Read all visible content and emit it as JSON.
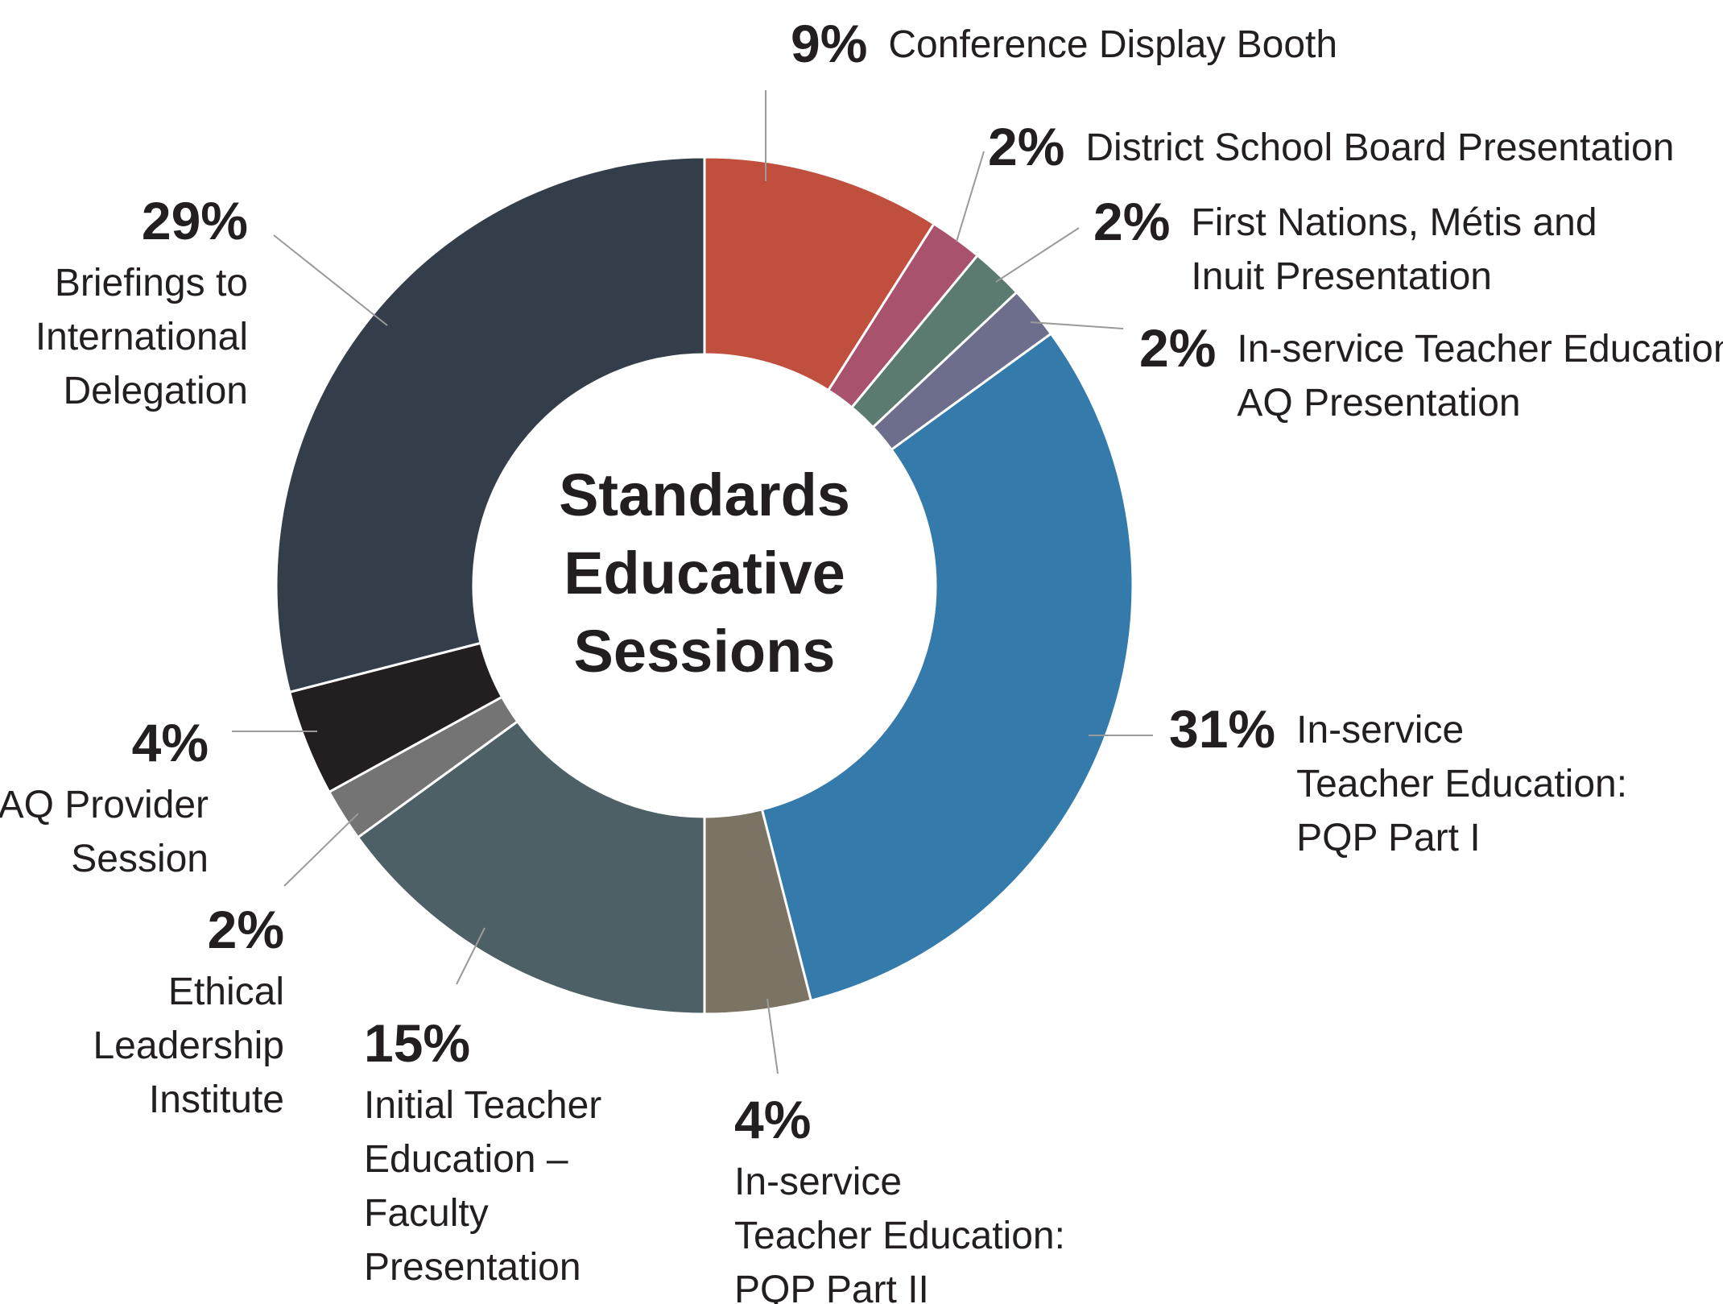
{
  "chart_data": {
    "type": "pie",
    "variant": "donut",
    "title_lines": [
      "Standards",
      "Educative",
      "Sessions"
    ],
    "slices": [
      {
        "percent_label": "9%",
        "value": 9,
        "color": "#c0503d",
        "label_lines": [
          "Conference Display Booth"
        ]
      },
      {
        "percent_label": "2%",
        "value": 2,
        "color": "#a9526d",
        "label_lines": [
          "District School Board Presentation"
        ]
      },
      {
        "percent_label": "2%",
        "value": 2,
        "color": "#5c7b70",
        "label_lines": [
          "First Nations, Métis and",
          "Inuit Presentation"
        ]
      },
      {
        "percent_label": "2%",
        "value": 2,
        "color": "#6d6e8c",
        "label_lines": [
          "In-service Teacher Education:",
          "AQ Presentation"
        ]
      },
      {
        "percent_label": "31%",
        "value": 31,
        "color": "#347aaa",
        "label_lines": [
          "In-service",
          "Teacher Education:",
          "PQP Part I"
        ]
      },
      {
        "percent_label": "4%",
        "value": 4,
        "color": "#7b7464",
        "label_lines": [
          "In-service",
          "Teacher Education:",
          "PQP Part II"
        ]
      },
      {
        "percent_label": "15%",
        "value": 15,
        "color": "#4c6065",
        "label_lines": [
          "Initial Teacher",
          "Education –",
          "Faculty",
          "Presentation"
        ]
      },
      {
        "percent_label": "2%",
        "value": 2,
        "color": "#747474",
        "label_lines": [
          "Ethical",
          "Leadership",
          "Institute"
        ]
      },
      {
        "percent_label": "4%",
        "value": 4,
        "color": "#231f20",
        "label_lines": [
          "AQ Provider",
          "Session"
        ]
      },
      {
        "percent_label": "29%",
        "value": 29,
        "color": "#333e4a",
        "label_lines": [
          "Briefings to",
          "International",
          "Delegation"
        ]
      }
    ]
  }
}
